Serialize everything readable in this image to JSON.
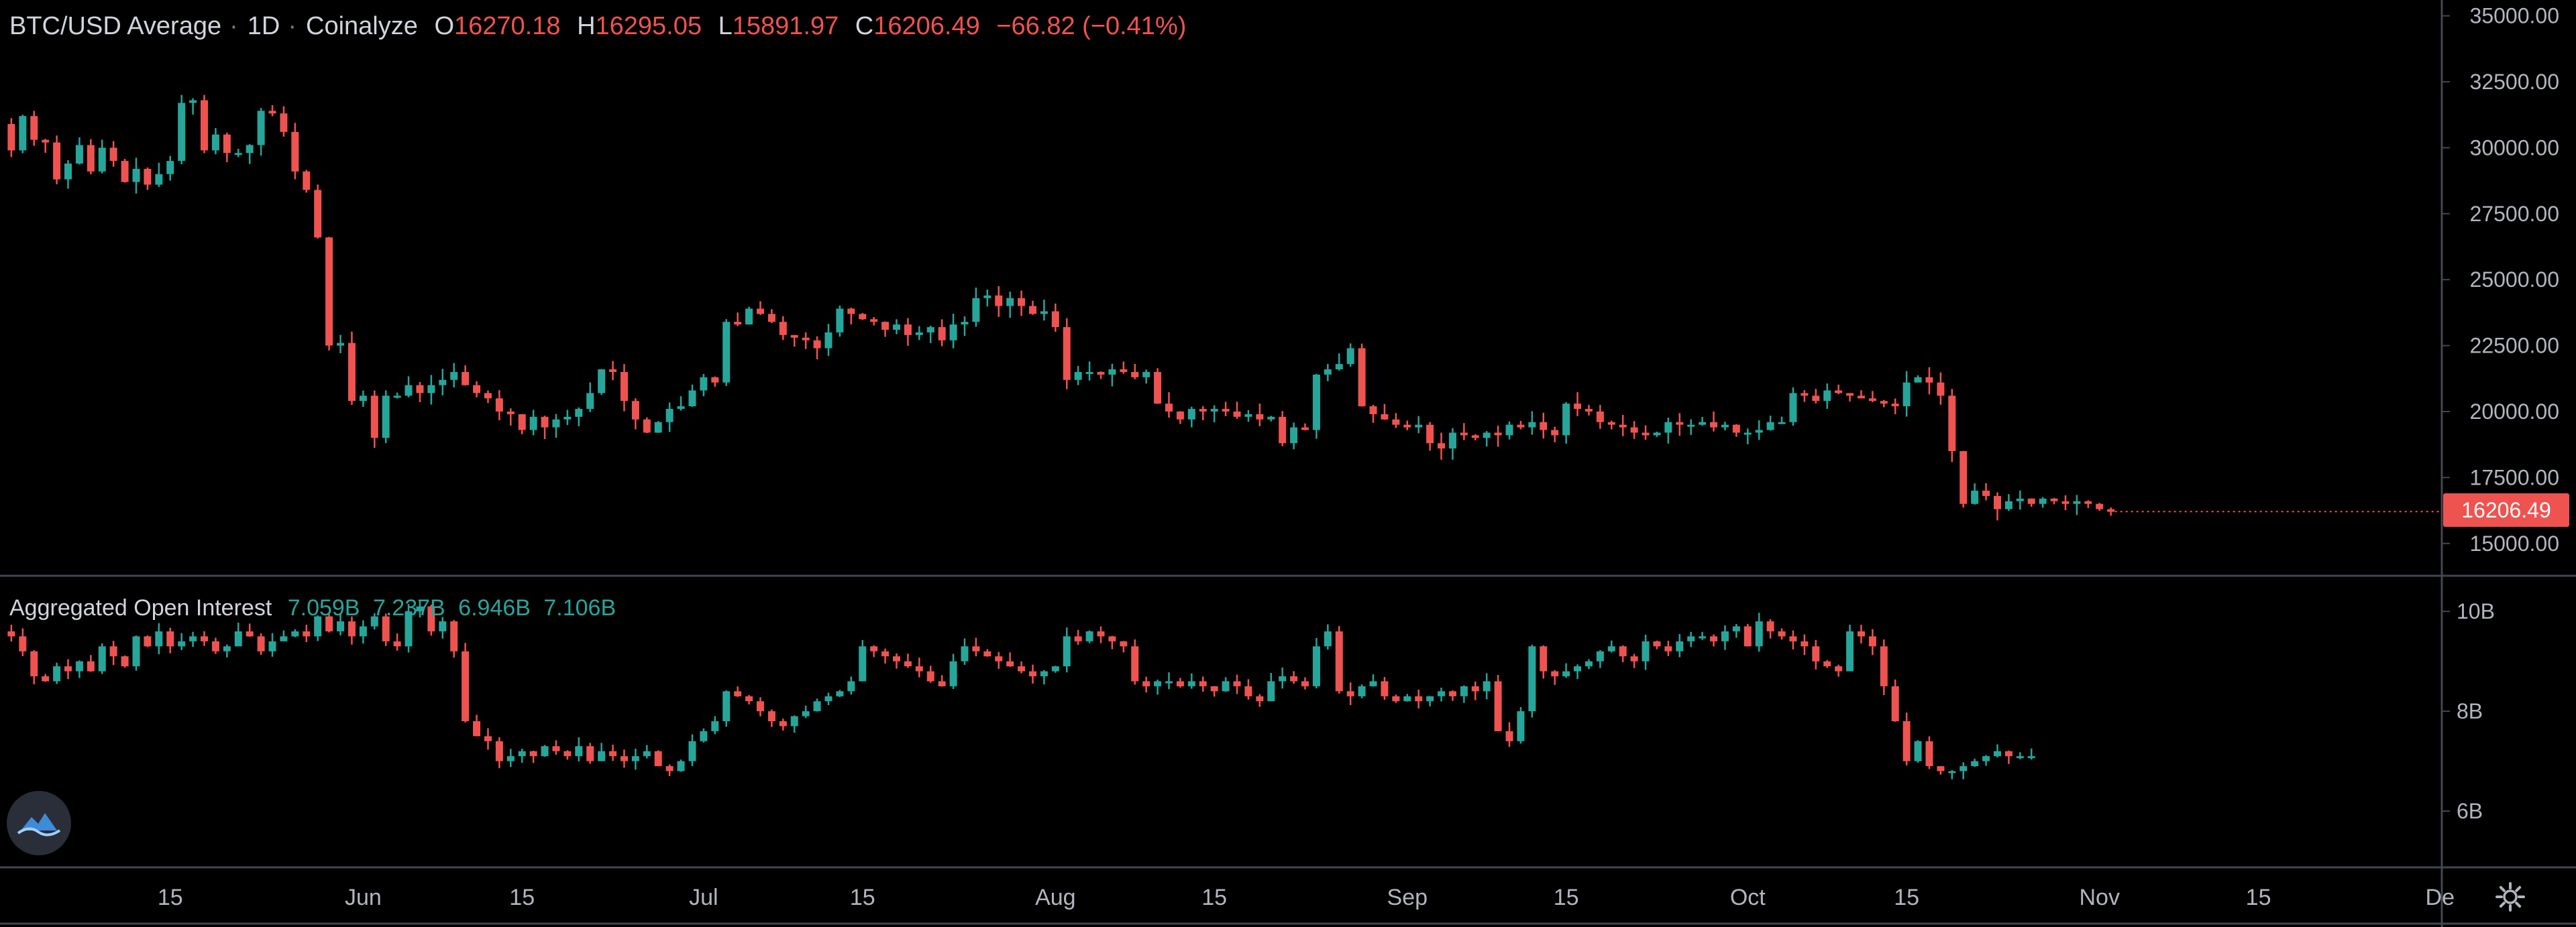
{
  "header": {
    "symbol": "BTC/USD Average",
    "interval": "1D",
    "source": "Coinalyze",
    "o_label": "O",
    "o": "16270.18",
    "h_label": "H",
    "h": "16295.05",
    "l_label": "L",
    "l": "15891.97",
    "c_label": "C",
    "c": "16206.49",
    "change": "−66.82 (−0.41%)"
  },
  "oi_legend": {
    "title": "Aggregated Open Interest",
    "values": [
      "7.059B",
      "7.237B",
      "6.946B",
      "7.106B"
    ]
  },
  "last_price_label": "16206.49",
  "colors": {
    "up": "#26a69a",
    "down": "#ef5350",
    "grid": "#2a2e39",
    "text": "#b2b5be",
    "bg": "#000000"
  },
  "icons": {
    "logo": "coinalyze-logo-icon",
    "settings": "gear-icon"
  },
  "chart_data": [
    {
      "type": "candlestick",
      "title": "BTC/USD Average · 1D · Coinalyze",
      "y_ticks": [
        15000,
        17500,
        20000,
        22500,
        25000,
        27500,
        30000,
        32500,
        35000
      ],
      "y_tick_labels": [
        "15000.00",
        "17500.00",
        "20000.00",
        "22500.00",
        "25000.00",
        "27500.00",
        "30000.00",
        "32500.00",
        "35000.00"
      ],
      "ylim": [
        13800,
        35600
      ],
      "x_ticks": [
        "15",
        "Jun",
        "15",
        "Jul",
        "15",
        "Aug",
        "15",
        "Sep",
        "15",
        "Oct",
        "15",
        "Nov",
        "15",
        "De"
      ],
      "x_range_days": [
        -1,
        205
      ],
      "x_tick_days": [
        14,
        31,
        45,
        61,
        75,
        92,
        106,
        123,
        137,
        153,
        167,
        184,
        198,
        214
      ],
      "start_date": "May 15",
      "daily_close": [
        29900,
        31200,
        30300,
        30200,
        28800,
        29400,
        30100,
        29100,
        30000,
        29500,
        28700,
        29200,
        28600,
        29000,
        29500,
        31700,
        31800,
        29900,
        30500,
        29800,
        29800,
        30100,
        31400,
        31300,
        30600,
        29100,
        28400,
        26600,
        22500,
        22600,
        20400,
        20600,
        19000,
        20600,
        20600,
        21000,
        20700,
        21000,
        21200,
        21500,
        21000,
        20700,
        20500,
        20000,
        19900,
        19300,
        19800,
        19400,
        19700,
        19800,
        20100,
        20700,
        21600,
        21500,
        20400,
        19700,
        19200,
        19600,
        20100,
        20200,
        20800,
        21300,
        21100,
        23400,
        23300,
        23900,
        23700,
        23400,
        22900,
        22800,
        22700,
        22400,
        23000,
        23900,
        23700,
        23500,
        23400,
        23100,
        23300,
        22900,
        23000,
        23200,
        22700,
        23300,
        23400,
        24300,
        24400,
        24000,
        24300,
        24000,
        23700,
        23800,
        23200,
        21200,
        21500,
        21500,
        21400,
        21600,
        21500,
        21300,
        21500,
        20300,
        20000,
        19700,
        20100,
        20000,
        20100,
        20000,
        19800,
        19900,
        19700,
        19800,
        18800,
        19400,
        19300,
        21400,
        21600,
        21800,
        22400,
        20200,
        19900,
        19700,
        19500,
        19400,
        19500,
        18800,
        18600,
        19200,
        19100,
        19000,
        19200,
        19100,
        19500,
        19400,
        19600,
        19300,
        19100,
        20300,
        20100,
        20000,
        19600,
        19500,
        19400,
        19200,
        19100,
        19200,
        19600,
        19500,
        19500,
        19600,
        19400,
        19500,
        19200,
        19200,
        19300,
        19600,
        19600,
        20700,
        20600,
        20400,
        20800,
        20700,
        20600,
        20500,
        20400,
        20300,
        20200,
        21100,
        21300,
        21100,
        20600,
        18500,
        16500,
        17000,
        16800,
        16300,
        16600,
        16700,
        16500,
        16700,
        16600,
        16500,
        16600,
        16500,
        16300,
        16200
      ],
      "last": {
        "o": 16270.18,
        "h": 16295.05,
        "l": 15891.97,
        "c": 16206.49
      }
    },
    {
      "type": "candlestick",
      "title": "Aggregated Open Interest",
      "y_ticks": [
        6000000000,
        8000000000,
        10000000000
      ],
      "y_tick_labels": [
        "6B",
        "8B",
        "10B"
      ],
      "ylim": [
        4900000000,
        10700000000
      ],
      "daily_close_b": [
        9.5,
        9.2,
        8.7,
        8.6,
        8.9,
        8.8,
        9.0,
        8.8,
        9.3,
        9.1,
        8.9,
        9.5,
        9.3,
        9.6,
        9.3,
        9.4,
        9.5,
        9.4,
        9.2,
        9.3,
        9.6,
        9.5,
        9.2,
        9.4,
        9.5,
        9.6,
        9.5,
        9.9,
        9.6,
        9.8,
        9.5,
        9.7,
        9.9,
        9.4,
        9.3,
        10.0,
        10.1,
        9.6,
        9.8,
        9.2,
        7.8,
        7.5,
        7.4,
        7.0,
        7.1,
        7.2,
        7.1,
        7.3,
        7.2,
        7.1,
        7.3,
        7.0,
        7.2,
        7.1,
        7.0,
        7.1,
        7.2,
        6.9,
        6.8,
        7.0,
        7.4,
        7.6,
        7.8,
        8.4,
        8.3,
        8.2,
        8.0,
        7.8,
        7.7,
        7.9,
        8.0,
        8.2,
        8.3,
        8.4,
        8.6,
        9.3,
        9.2,
        9.1,
        9.0,
        8.9,
        8.8,
        8.6,
        8.5,
        9.0,
        9.3,
        9.2,
        9.1,
        9.0,
        8.9,
        8.8,
        8.7,
        8.8,
        8.9,
        9.5,
        9.4,
        9.6,
        9.5,
        9.4,
        9.3,
        8.6,
        8.5,
        8.6,
        8.6,
        8.5,
        8.6,
        8.5,
        8.4,
        8.6,
        8.5,
        8.3,
        8.2,
        8.6,
        8.7,
        8.6,
        8.5,
        9.3,
        9.6,
        8.4,
        8.3,
        8.5,
        8.6,
        8.3,
        8.2,
        8.3,
        8.2,
        8.3,
        8.4,
        8.3,
        8.5,
        8.4,
        8.6,
        7.6,
        7.4,
        8.0,
        9.3,
        8.8,
        8.7,
        8.8,
        8.9,
        9.0,
        9.2,
        9.3,
        9.1,
        9.0,
        9.4,
        9.3,
        9.2,
        9.4,
        9.5,
        9.5,
        9.4,
        9.6,
        9.7,
        9.3,
        9.8,
        9.6,
        9.5,
        9.4,
        9.3,
        9.0,
        8.9,
        8.8,
        9.6,
        9.5,
        9.3,
        8.5,
        7.8,
        7.0,
        7.4,
        6.9,
        6.8,
        6.8,
        6.9,
        7.0,
        7.1,
        7.2,
        7.1,
        7.1,
        7.1
      ]
    }
  ]
}
